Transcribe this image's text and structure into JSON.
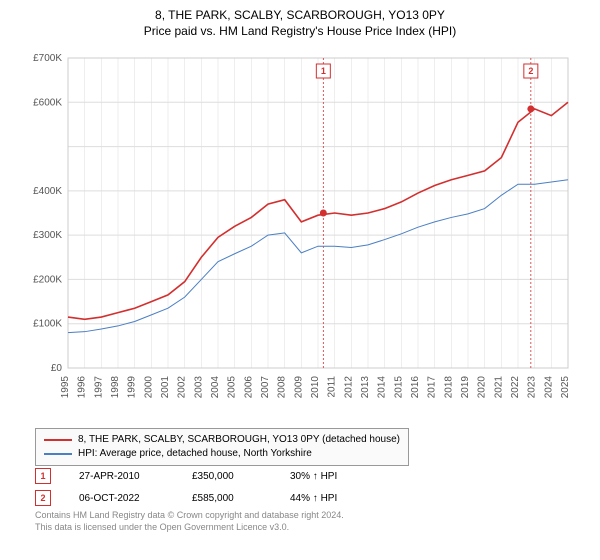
{
  "title": "8, THE PARK, SCALBY, SCARBOROUGH, YO13 0PY",
  "subtitle": "Price paid vs. HM Land Registry's House Price Index (HPI)",
  "chart": {
    "type": "line",
    "background_color": "#ffffff",
    "grid_color": "#dddddd",
    "axis_color": "#cccccc",
    "x_years": [
      1995,
      1996,
      1997,
      1998,
      1999,
      2000,
      2001,
      2002,
      2003,
      2004,
      2005,
      2006,
      2007,
      2008,
      2009,
      2010,
      2011,
      2012,
      2013,
      2014,
      2015,
      2016,
      2017,
      2018,
      2019,
      2020,
      2021,
      2022,
      2023,
      2024,
      2025
    ],
    "ylim": [
      0,
      700000
    ],
    "ytick_step": 100000,
    "y_tick_labels": [
      "£0",
      "£100K",
      "£200K",
      "£300K",
      "£400K",
      "",
      "£600K",
      "£700K"
    ],
    "series": [
      {
        "name": "property",
        "label": "8, THE PARK, SCALBY, SCARBOROUGH, YO13 0PY (detached house)",
        "color": "#d32f2f",
        "line_width": 1.6,
        "values": [
          115000,
          110000,
          115000,
          125000,
          135000,
          150000,
          165000,
          195000,
          250000,
          295000,
          320000,
          340000,
          370000,
          380000,
          330000,
          345000,
          350000,
          345000,
          350000,
          360000,
          375000,
          395000,
          412000,
          425000,
          435000,
          445000,
          475000,
          555000,
          585000,
          570000,
          600000
        ]
      },
      {
        "name": "hpi",
        "label": "HPI: Average price, detached house, North Yorkshire",
        "color": "#4a7fc4",
        "line_width": 1.0,
        "values": [
          80000,
          82000,
          88000,
          95000,
          105000,
          120000,
          135000,
          160000,
          200000,
          240000,
          258000,
          275000,
          300000,
          305000,
          260000,
          275000,
          275000,
          272000,
          278000,
          290000,
          303000,
          318000,
          330000,
          340000,
          348000,
          360000,
          390000,
          415000,
          415000,
          420000,
          425000
        ]
      }
    ],
    "sale_markers": [
      {
        "num": "1",
        "year_frac": 2010.32,
        "value": 350000
      },
      {
        "num": "2",
        "year_frac": 2022.77,
        "value": 585000
      }
    ],
    "marker_line_color": "#d32f2f",
    "marker_point_color": "#d32f2f"
  },
  "legend": {
    "items": [
      {
        "color": "#d32f2f",
        "label": "8, THE PARK, SCALBY, SCARBOROUGH, YO13 0PY (detached house)"
      },
      {
        "color": "#4a7fc4",
        "label": "HPI: Average price, detached house, North Yorkshire"
      }
    ]
  },
  "sales": [
    {
      "num": "1",
      "date": "27-APR-2010",
      "price": "£350,000",
      "hpi_diff": "30% ↑ HPI"
    },
    {
      "num": "2",
      "date": "06-OCT-2022",
      "price": "£585,000",
      "hpi_diff": "44% ↑ HPI"
    }
  ],
  "footer_line1": "Contains HM Land Registry data © Crown copyright and database right 2024.",
  "footer_line2": "This data is licensed under the Open Government Licence v3.0."
}
